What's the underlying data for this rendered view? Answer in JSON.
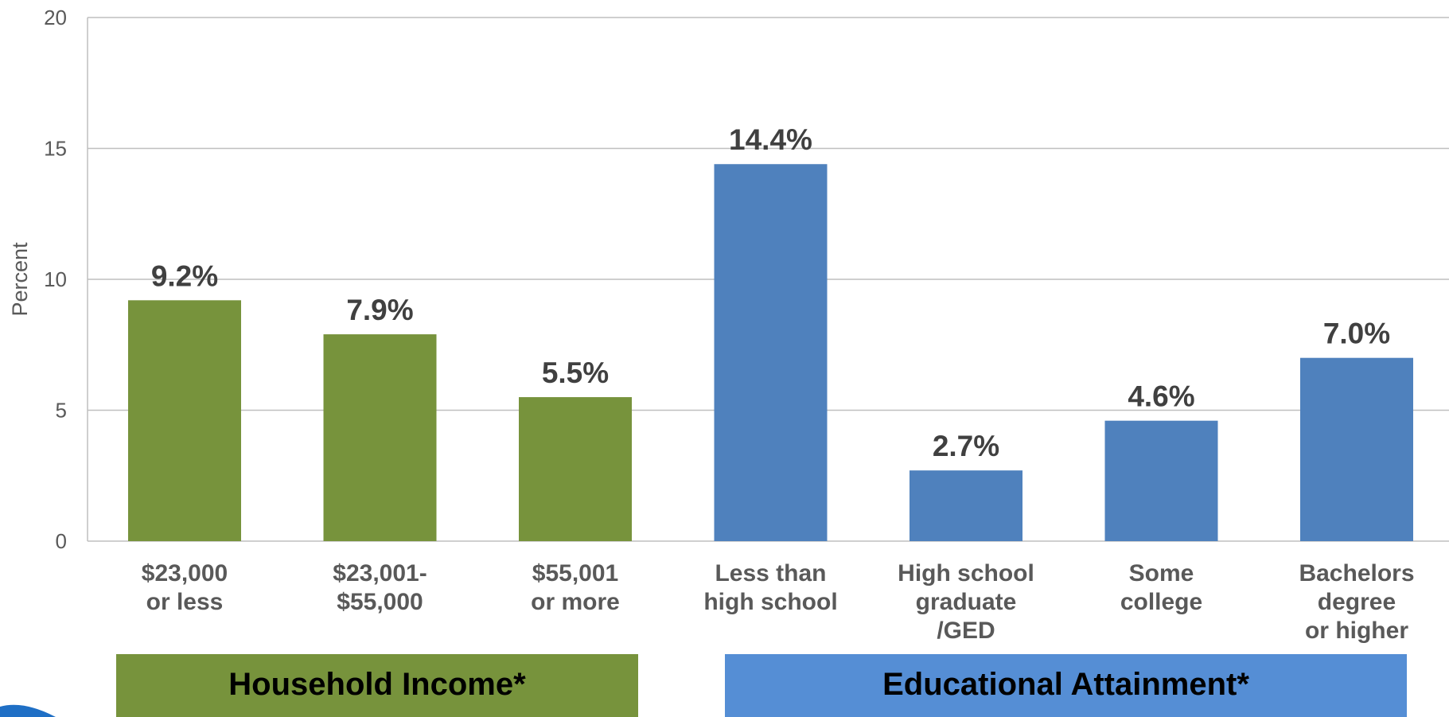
{
  "chart_data": {
    "type": "bar",
    "title": "",
    "xlabel": "",
    "ylabel": "Percent",
    "ylim": [
      0,
      20
    ],
    "yticks": [
      0,
      5,
      10,
      15,
      20
    ],
    "grid": true,
    "categories": [
      [
        "$23,000",
        "or less"
      ],
      [
        "$23,001-",
        "$55,000"
      ],
      [
        "$55,001",
        "or more"
      ],
      [
        "Less than",
        "high school"
      ],
      [
        "High school",
        "graduate",
        "/GED"
      ],
      [
        "Some",
        "college"
      ],
      [
        "Bachelors",
        "degree",
        "or higher"
      ]
    ],
    "values": [
      9.2,
      7.9,
      5.5,
      14.4,
      2.7,
      4.6,
      7.0
    ],
    "data_labels": [
      "9.2%",
      "7.9%",
      "5.5%",
      "14.4%",
      "2.7%",
      "4.6%",
      "7.0%"
    ],
    "groups": [
      {
        "label": "Household Income*",
        "color": "#77933c",
        "bar_color": "#77933c",
        "indices": [
          0,
          1,
          2
        ]
      },
      {
        "label": "Educational Attainment*",
        "color": "#558ed5",
        "bar_color": "#4f81bd",
        "indices": [
          3,
          4,
          5,
          6
        ]
      }
    ]
  },
  "colors": {
    "grid": "#bfbfbf",
    "axis_text": "#595959",
    "data_label": "#404040",
    "corner_accent": "#1f6fc5"
  }
}
